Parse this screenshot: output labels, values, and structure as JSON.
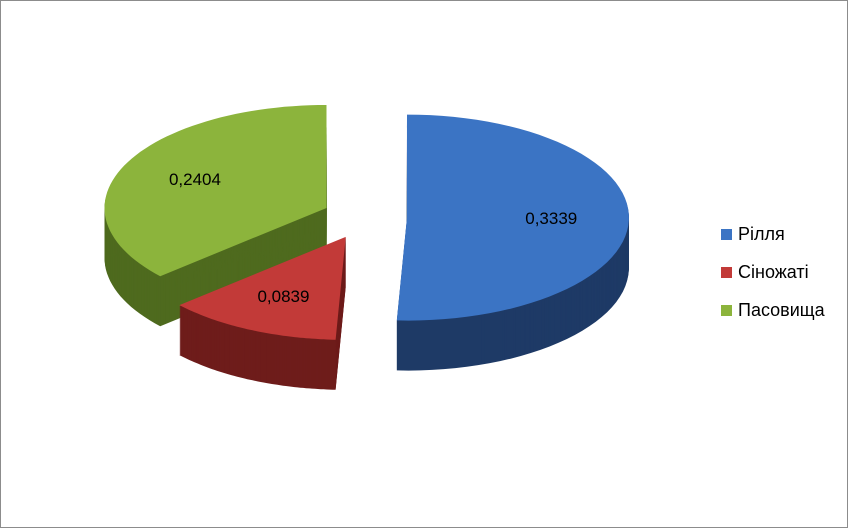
{
  "chart_data": {
    "type": "pie",
    "style": "3d-exploded",
    "categories": [
      "Рілля",
      "Сіножаті",
      "Пасовища"
    ],
    "values": [
      0.3339,
      0.0839,
      0.2404
    ],
    "data_labels": [
      "0,3339",
      "0,0839",
      "0,2404"
    ],
    "colors": [
      "#3b74c4",
      "#c23a38",
      "#8cb43c"
    ],
    "side_colors": [
      "#1e3a66",
      "#6e1c1b",
      "#4e6a1e"
    ],
    "legend_position": "right",
    "title": ""
  }
}
